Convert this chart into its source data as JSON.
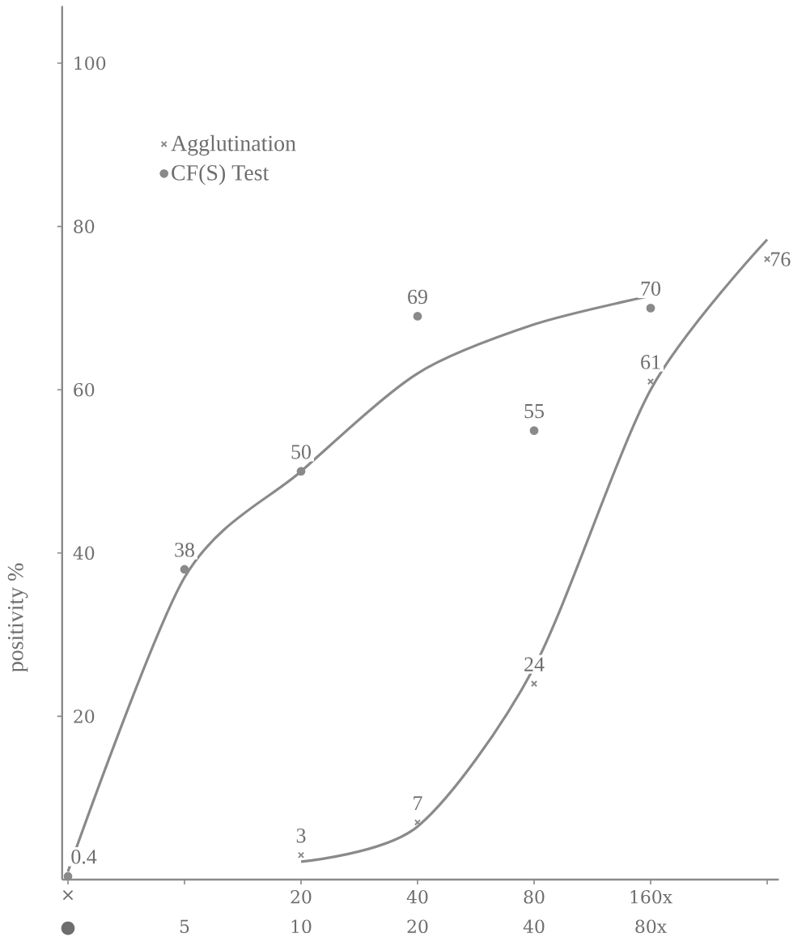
{
  "chart_data": {
    "type": "scatter",
    "ylabel": "positivity %",
    "categories": [
      "×",
      null,
      "20",
      "40",
      "80",
      "160x",
      null
    ],
    "annotations": [
      "●",
      "5",
      "10",
      "20",
      "40",
      "80x"
    ],
    "ylim": [
      0,
      107
    ],
    "yticks": [
      20,
      40,
      60,
      80,
      100
    ],
    "legend": "top left",
    "grid": false,
    "series": [
      {
        "name": "Agglutination",
        "marker": "cross",
        "color": "#8a8a8a",
        "values": [
          null,
          null,
          3,
          7,
          24,
          61,
          76
        ],
        "value_labels": [
          null,
          null,
          "3",
          "7",
          "24",
          "61",
          "76"
        ]
      },
      {
        "name": "CF(S) Test",
        "marker": "circle",
        "color": "#8a8a8a",
        "values": [
          0.4,
          38,
          50,
          69,
          55,
          70,
          null
        ],
        "value_labels": [
          "0.4",
          "38",
          "50",
          "69",
          "55",
          "70",
          null
        ]
      },
      {
        "type": "line",
        "marker": "none",
        "line_style": "solid",
        "color": "#8a8a8a",
        "values": [
          1,
          37,
          50,
          62,
          68,
          71.5,
          null
        ]
      },
      {
        "type": "line",
        "marker": "none",
        "line_style": "solid",
        "color": "#8a8a8a",
        "values": [
          null,
          null,
          2.2,
          6.5,
          26,
          60,
          78.4
        ]
      }
    ]
  }
}
